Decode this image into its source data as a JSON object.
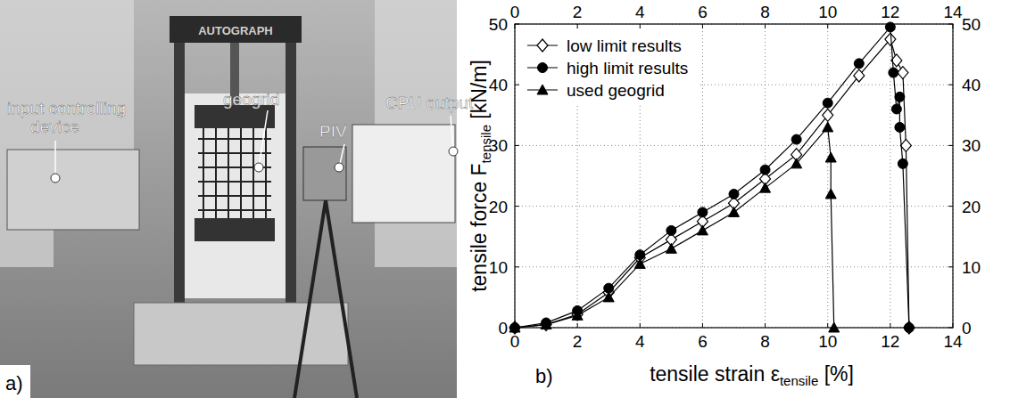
{
  "photo": {
    "panel_label": "a)",
    "machine_brand": "AUTOGRAPH",
    "labels": [
      {
        "lines": [
          "input controlling",
          "device"
        ]
      },
      {
        "lines": [
          "geogrid"
        ]
      },
      {
        "lines": [
          "PIV"
        ]
      },
      {
        "lines": [
          "CPU output"
        ]
      }
    ]
  },
  "chart_data": {
    "type": "line",
    "panel_label": "b)",
    "xlabel": {
      "main": "tensile strain ε",
      "sub": "tensile",
      "after": " [%]"
    },
    "ylabel": {
      "main": "tensile force F",
      "sub": "tensile",
      "after": " [kN/m]"
    },
    "xlim": [
      0,
      14
    ],
    "xticks": [
      0,
      2,
      4,
      6,
      8,
      10,
      12,
      14
    ],
    "ylim": [
      0,
      50
    ],
    "yticks": [
      0,
      10,
      20,
      30,
      40,
      50
    ],
    "grid": true,
    "legend": "upper left",
    "series": [
      {
        "name": "low limit results",
        "color": "#000000",
        "marker": "diamond-open",
        "x": [
          0,
          1,
          2,
          3,
          4,
          5,
          6,
          7,
          8,
          9,
          10,
          11,
          12,
          12.2,
          12.4,
          12.5,
          12.6
        ],
        "values": [
          0,
          0.5,
          2.2,
          5.8,
          11.5,
          14.5,
          17.5,
          20.5,
          24.5,
          28.5,
          35,
          41.5,
          47.5,
          44,
          42,
          30,
          0
        ]
      },
      {
        "name": "high limit results",
        "color": "#000000",
        "marker": "circle",
        "x": [
          0,
          1,
          2,
          3,
          4,
          5,
          6,
          7,
          8,
          9,
          10,
          11,
          12,
          12.1,
          12.2,
          12.3,
          12.3,
          12.4,
          12.6
        ],
        "values": [
          0,
          0.8,
          2.8,
          6.5,
          12,
          16,
          19,
          22,
          26,
          31,
          37,
          43.5,
          49.5,
          42,
          36,
          38,
          33,
          27,
          0
        ]
      },
      {
        "name": "used geogrid",
        "color": "#000000",
        "marker": "triangle",
        "x": [
          0,
          1,
          2,
          3,
          4,
          5,
          6,
          7,
          8,
          9,
          10,
          10.1,
          10.1,
          10.2
        ],
        "values": [
          0,
          0.5,
          2,
          5,
          10.5,
          13,
          16,
          19,
          23,
          27,
          33,
          28,
          22,
          0
        ]
      }
    ]
  }
}
